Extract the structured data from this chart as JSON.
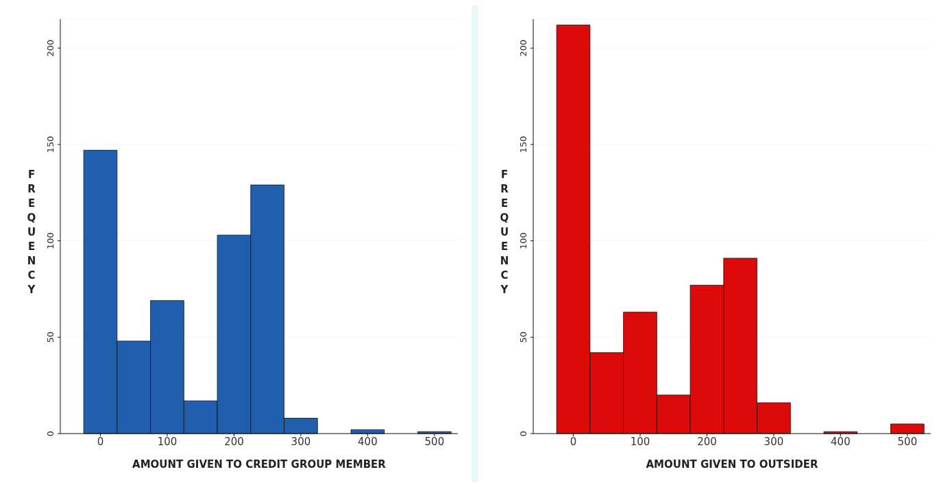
{
  "chart_data": [
    {
      "type": "histogram",
      "xlabel": "AMOUNT GIVEN TO CREDIT GROUP MEMBER",
      "ylabel": "FREQUENCY",
      "bins": [
        -25,
        25,
        75,
        125,
        175,
        225,
        275,
        325,
        375,
        425,
        475,
        525
      ],
      "values": [
        147,
        48,
        69,
        17,
        103,
        129,
        8,
        0,
        2,
        0,
        1
      ],
      "color": "#1f5fae",
      "xlim": [
        -60,
        535
      ],
      "xticks": [
        0,
        100,
        200,
        300,
        400,
        500
      ],
      "ylim": [
        0,
        215
      ],
      "yticks": [
        0,
        50,
        100,
        150,
        200
      ],
      "grid": "y"
    },
    {
      "type": "histogram",
      "xlabel": "AMOUNT GIVEN TO OUTSIDER",
      "ylabel": "FREQUENCY",
      "bins": [
        -25,
        25,
        75,
        125,
        175,
        225,
        275,
        325,
        375,
        425,
        475,
        525
      ],
      "values": [
        212,
        42,
        63,
        20,
        77,
        91,
        16,
        0,
        1,
        0,
        5
      ],
      "color": "#dd0a0a",
      "xlim": [
        -60,
        535
      ],
      "xticks": [
        0,
        100,
        200,
        300,
        400,
        500
      ],
      "ylim": [
        0,
        215
      ],
      "yticks": [
        0,
        50,
        100,
        150,
        200
      ],
      "grid": "y"
    }
  ]
}
